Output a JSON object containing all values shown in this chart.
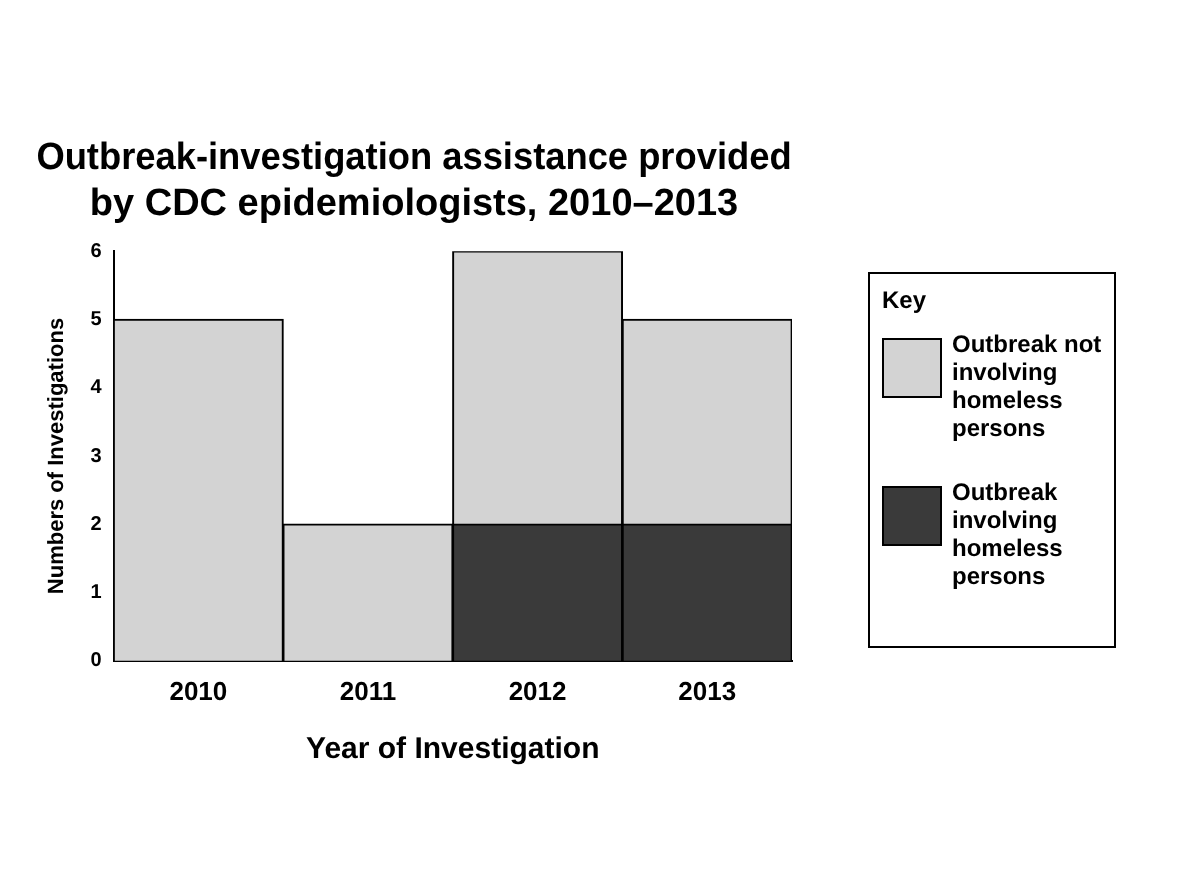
{
  "chart_data": {
    "type": "bar",
    "title": "Outbreak-investigation assistance provided by CDC epidemiologists, 2010–2013",
    "xlabel": "Year of Investigation",
    "ylabel": "Numbers of Investigations",
    "legend_title": "Key",
    "categories": [
      "2010",
      "2011",
      "2012",
      "2013"
    ],
    "stacked": true,
    "ylim": [
      0,
      6
    ],
    "yticks": [
      0,
      1,
      2,
      3,
      4,
      5,
      6
    ],
    "grid": false,
    "legend": "right",
    "series": [
      {
        "name": "Outbreak involving homeless persons",
        "color": "#3a3a3a",
        "values": [
          0,
          0,
          2,
          2
        ]
      },
      {
        "name": "Outbreak not involving homeless persons",
        "color": "#d3d3d3",
        "values": [
          5,
          2,
          4,
          3
        ]
      }
    ]
  }
}
